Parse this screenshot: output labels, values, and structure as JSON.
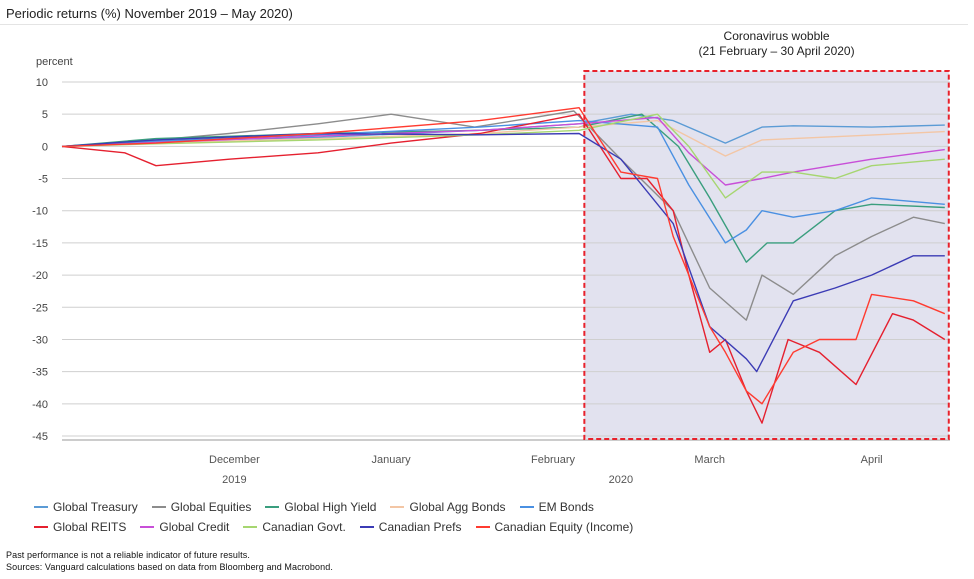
{
  "header": {
    "title": "Periodic returns (%) November 2019 – May 2020)"
  },
  "chart_data": {
    "type": "line",
    "ylabel": "percent",
    "ylim": [
      -45,
      10
    ],
    "yticks": [
      10,
      5,
      0,
      -5,
      -10,
      -15,
      -20,
      -25,
      -30,
      -35,
      -40,
      -45
    ],
    "grid": true,
    "x_range": [
      "2019-11-13",
      "2020-05-01"
    ],
    "x_month_labels": [
      {
        "label": "December",
        "date": "2019-12-16"
      },
      {
        "label": "January",
        "date": "2020-01-15"
      },
      {
        "label": "February",
        "date": "2020-02-15"
      },
      {
        "label": "March",
        "date": "2020-03-16"
      },
      {
        "label": "April",
        "date": "2020-04-16"
      }
    ],
    "x_year_labels": [
      {
        "label": "2019",
        "date": "2019-12-16"
      },
      {
        "label": "2020",
        "date": "2020-02-28"
      }
    ],
    "annotation": {
      "line1": "Coronavirus wobble",
      "line2": "(21 February – 30 April 2020)",
      "start": "2020-02-21",
      "end": "2020-04-30",
      "shade_color": "#e2e2ef",
      "border_color": "#e8212b"
    },
    "legend_position": "bottom",
    "series": [
      {
        "name": "Global Treasury",
        "color": "#5b9bd5",
        "points": [
          [
            "2019-11-13",
            0
          ],
          [
            "2019-12-01",
            0.8
          ],
          [
            "2020-01-01",
            1.4
          ],
          [
            "2020-02-01",
            2.5
          ],
          [
            "2020-02-20",
            3.5
          ],
          [
            "2020-03-01",
            5
          ],
          [
            "2020-03-09",
            4
          ],
          [
            "2020-03-19",
            0.5
          ],
          [
            "2020-03-26",
            3
          ],
          [
            "2020-04-01",
            3.2
          ],
          [
            "2020-04-16",
            3
          ],
          [
            "2020-04-30",
            3.3
          ]
        ]
      },
      {
        "name": "Global Equities",
        "color": "#8c8c8c",
        "points": [
          [
            "2019-11-13",
            0
          ],
          [
            "2019-12-01",
            1
          ],
          [
            "2019-12-15",
            2
          ],
          [
            "2020-01-01",
            3.5
          ],
          [
            "2020-01-15",
            5
          ],
          [
            "2020-01-31",
            3
          ],
          [
            "2020-02-19",
            5.5
          ],
          [
            "2020-02-28",
            -2
          ],
          [
            "2020-03-09",
            -10
          ],
          [
            "2020-03-16",
            -22
          ],
          [
            "2020-03-23",
            -27
          ],
          [
            "2020-03-26",
            -20
          ],
          [
            "2020-04-01",
            -23
          ],
          [
            "2020-04-09",
            -17
          ],
          [
            "2020-04-16",
            -14
          ],
          [
            "2020-04-24",
            -11
          ],
          [
            "2020-04-30",
            -12
          ]
        ]
      },
      {
        "name": "Global High Yield",
        "color": "#3a9e7e",
        "points": [
          [
            "2019-11-13",
            0
          ],
          [
            "2019-12-01",
            1.2
          ],
          [
            "2020-01-01",
            2
          ],
          [
            "2020-02-01",
            2.5
          ],
          [
            "2020-02-20",
            3
          ],
          [
            "2020-03-03",
            5
          ],
          [
            "2020-03-10",
            0
          ],
          [
            "2020-03-16",
            -8
          ],
          [
            "2020-03-23",
            -18
          ],
          [
            "2020-03-27",
            -15
          ],
          [
            "2020-04-01",
            -15
          ],
          [
            "2020-04-09",
            -10
          ],
          [
            "2020-04-16",
            -9
          ],
          [
            "2020-04-30",
            -9.5
          ]
        ]
      },
      {
        "name": "Global Agg Bonds",
        "color": "#f3c6a5",
        "points": [
          [
            "2019-11-13",
            0
          ],
          [
            "2019-12-01",
            0.5
          ],
          [
            "2020-01-01",
            1.2
          ],
          [
            "2020-02-01",
            2
          ],
          [
            "2020-02-20",
            3
          ],
          [
            "2020-03-06",
            4
          ],
          [
            "2020-03-19",
            -1.5
          ],
          [
            "2020-03-26",
            1
          ],
          [
            "2020-04-09",
            1.5
          ],
          [
            "2020-04-30",
            2.3
          ]
        ]
      },
      {
        "name": "EM Bonds",
        "color": "#4a90e2",
        "points": [
          [
            "2019-11-13",
            0
          ],
          [
            "2019-12-01",
            0.8
          ],
          [
            "2020-01-01",
            1.8
          ],
          [
            "2020-02-01",
            3
          ],
          [
            "2020-02-20",
            4
          ],
          [
            "2020-03-06",
            3
          ],
          [
            "2020-03-12",
            -6
          ],
          [
            "2020-03-19",
            -15
          ],
          [
            "2020-03-23",
            -13
          ],
          [
            "2020-03-26",
            -10
          ],
          [
            "2020-04-01",
            -11
          ],
          [
            "2020-04-09",
            -10
          ],
          [
            "2020-04-16",
            -8
          ],
          [
            "2020-04-30",
            -9
          ]
        ]
      },
      {
        "name": "Global REITS",
        "color": "#e5202f",
        "points": [
          [
            "2019-11-13",
            0
          ],
          [
            "2019-11-25",
            -1
          ],
          [
            "2019-12-01",
            -3
          ],
          [
            "2019-12-15",
            -2
          ],
          [
            "2020-01-01",
            -1
          ],
          [
            "2020-01-15",
            0.5
          ],
          [
            "2020-02-01",
            2
          ],
          [
            "2020-02-20",
            5
          ],
          [
            "2020-02-28",
            -5
          ],
          [
            "2020-03-04",
            -5
          ],
          [
            "2020-03-09",
            -10
          ],
          [
            "2020-03-12",
            -20
          ],
          [
            "2020-03-16",
            -32
          ],
          [
            "2020-03-19",
            -30
          ],
          [
            "2020-03-23",
            -38
          ],
          [
            "2020-03-26",
            -43
          ],
          [
            "2020-03-31",
            -30
          ],
          [
            "2020-04-06",
            -32
          ],
          [
            "2020-04-13",
            -37
          ],
          [
            "2020-04-20",
            -26
          ],
          [
            "2020-04-24",
            -27
          ],
          [
            "2020-04-30",
            -30
          ]
        ]
      },
      {
        "name": "Global Credit",
        "color": "#c84fd8",
        "points": [
          [
            "2019-11-13",
            0
          ],
          [
            "2019-12-01",
            0.6
          ],
          [
            "2020-01-01",
            1.6
          ],
          [
            "2020-02-01",
            2.5
          ],
          [
            "2020-02-20",
            3.5
          ],
          [
            "2020-03-06",
            4.5
          ],
          [
            "2020-03-12",
            -1
          ],
          [
            "2020-03-19",
            -6
          ],
          [
            "2020-03-26",
            -5
          ],
          [
            "2020-04-01",
            -4
          ],
          [
            "2020-04-16",
            -2
          ],
          [
            "2020-04-30",
            -0.5
          ]
        ]
      },
      {
        "name": "Canadian Govt.",
        "color": "#a6d670",
        "points": [
          [
            "2019-11-13",
            0
          ],
          [
            "2019-12-01",
            0.4
          ],
          [
            "2020-01-01",
            1
          ],
          [
            "2020-02-01",
            1.8
          ],
          [
            "2020-02-20",
            2.5
          ],
          [
            "2020-03-06",
            5
          ],
          [
            "2020-03-12",
            0
          ],
          [
            "2020-03-19",
            -8
          ],
          [
            "2020-03-26",
            -4
          ],
          [
            "2020-04-01",
            -4
          ],
          [
            "2020-04-09",
            -5
          ],
          [
            "2020-04-16",
            -3
          ],
          [
            "2020-04-30",
            -2
          ]
        ]
      },
      {
        "name": "Canadian Prefs",
        "color": "#3b3bb5",
        "points": [
          [
            "2019-11-13",
            0
          ],
          [
            "2019-12-01",
            1
          ],
          [
            "2020-01-01",
            2
          ],
          [
            "2020-02-01",
            1.8
          ],
          [
            "2020-02-20",
            2
          ],
          [
            "2020-02-28",
            -2
          ],
          [
            "2020-03-09",
            -12
          ],
          [
            "2020-03-16",
            -28
          ],
          [
            "2020-03-23",
            -33
          ],
          [
            "2020-03-25",
            -35
          ],
          [
            "2020-04-01",
            -24
          ],
          [
            "2020-04-09",
            -22
          ],
          [
            "2020-04-16",
            -20
          ],
          [
            "2020-04-24",
            -17
          ],
          [
            "2020-04-30",
            -17
          ]
        ]
      },
      {
        "name": "Canadian Equity (Income)",
        "color": "#ff3b30",
        "points": [
          [
            "2019-11-13",
            0
          ],
          [
            "2019-12-01",
            0.5
          ],
          [
            "2020-01-01",
            2
          ],
          [
            "2020-02-01",
            4
          ],
          [
            "2020-02-20",
            6
          ],
          [
            "2020-02-28",
            -4
          ],
          [
            "2020-03-06",
            -5
          ],
          [
            "2020-03-09",
            -14
          ],
          [
            "2020-03-16",
            -28
          ],
          [
            "2020-03-19",
            -32
          ],
          [
            "2020-03-23",
            -38
          ],
          [
            "2020-03-26",
            -40
          ],
          [
            "2020-04-01",
            -32
          ],
          [
            "2020-04-06",
            -30
          ],
          [
            "2020-04-13",
            -30
          ],
          [
            "2020-04-16",
            -23
          ],
          [
            "2020-04-24",
            -24
          ],
          [
            "2020-04-30",
            -26
          ]
        ]
      }
    ]
  },
  "footnotes": {
    "line1": "Past performance is not a reliable indicator of future results.",
    "line2": "Sources: Vanguard calculations based on data from Bloomberg and Macrobond."
  }
}
